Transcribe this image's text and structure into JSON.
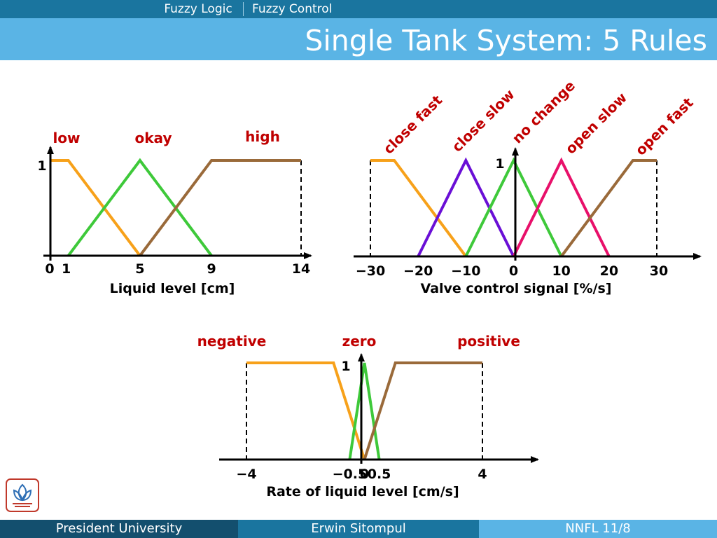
{
  "header": {
    "breadcrumbs": [
      "Fuzzy Logic",
      "Fuzzy Control"
    ],
    "title": "Single Tank System: 5 Rules"
  },
  "footer": {
    "left": "President University",
    "center": "Erwin Sitompul",
    "right": "NNFL 11/8"
  },
  "chart_data": [
    {
      "type": "line",
      "title": "",
      "xlabel": "Liquid level [cm]",
      "ylabel": "",
      "xlim": [
        0,
        14
      ],
      "ylim": [
        0,
        1
      ],
      "x_ticks": [
        "0",
        "1",
        "5",
        "9",
        "14"
      ],
      "y_ticks": [
        "1"
      ],
      "series": [
        {
          "name": "low",
          "color": "#f7a11a",
          "x": [
            0,
            1,
            5
          ],
          "y": [
            1,
            1,
            0
          ]
        },
        {
          "name": "okay",
          "color": "#3ec93a",
          "x": [
            1,
            5,
            9
          ],
          "y": [
            0,
            1,
            0
          ]
        },
        {
          "name": "high",
          "color": "#9a6a3a",
          "x": [
            5,
            9,
            14
          ],
          "y": [
            0,
            1,
            1
          ]
        }
      ]
    },
    {
      "type": "line",
      "title": "",
      "xlabel": "Valve control signal  [%/s]",
      "ylabel": "",
      "xlim": [
        -30,
        30
      ],
      "ylim": [
        0,
        1
      ],
      "x_ticks": [
        "−30",
        "−20",
        "−10",
        "0",
        "10",
        "20",
        "30"
      ],
      "y_ticks": [
        "1"
      ],
      "series": [
        {
          "name": "close fast",
          "color": "#f7a11a",
          "x": [
            -30,
            -25,
            -10
          ],
          "y": [
            1,
            1,
            0
          ]
        },
        {
          "name": "close slow",
          "color": "#6a0fd6",
          "x": [
            -20,
            -10,
            0
          ],
          "y": [
            0,
            1,
            0
          ]
        },
        {
          "name": "no change",
          "color": "#3ec93a",
          "x": [
            -10,
            0,
            10
          ],
          "y": [
            0,
            1,
            0
          ]
        },
        {
          "name": "open slow",
          "color": "#e8106a",
          "x": [
            0,
            10,
            20
          ],
          "y": [
            0,
            1,
            0
          ]
        },
        {
          "name": "open fast",
          "color": "#9a6a3a",
          "x": [
            10,
            25,
            30
          ],
          "y": [
            0,
            1,
            1
          ]
        }
      ]
    },
    {
      "type": "line",
      "title": "",
      "xlabel": "Rate of liquid level  [cm/s]",
      "ylabel": "",
      "xlim": [
        -4,
        4
      ],
      "ylim": [
        0,
        1
      ],
      "x_ticks": [
        "−4",
        "−0.5",
        "0",
        "0.5",
        "4"
      ],
      "y_ticks": [
        "1"
      ],
      "series": [
        {
          "name": "negative",
          "color": "#f7a11a",
          "x": [
            -4,
            -1.05,
            0
          ],
          "y": [
            1,
            1,
            0
          ]
        },
        {
          "name": "zero",
          "color": "#3ec93a",
          "x": [
            -0.5,
            0,
            0.5
          ],
          "y": [
            0,
            1,
            0
          ]
        },
        {
          "name": "positive",
          "color": "#9a6a3a",
          "x": [
            0,
            1.05,
            4
          ],
          "y": [
            0,
            1,
            1
          ]
        }
      ]
    }
  ]
}
